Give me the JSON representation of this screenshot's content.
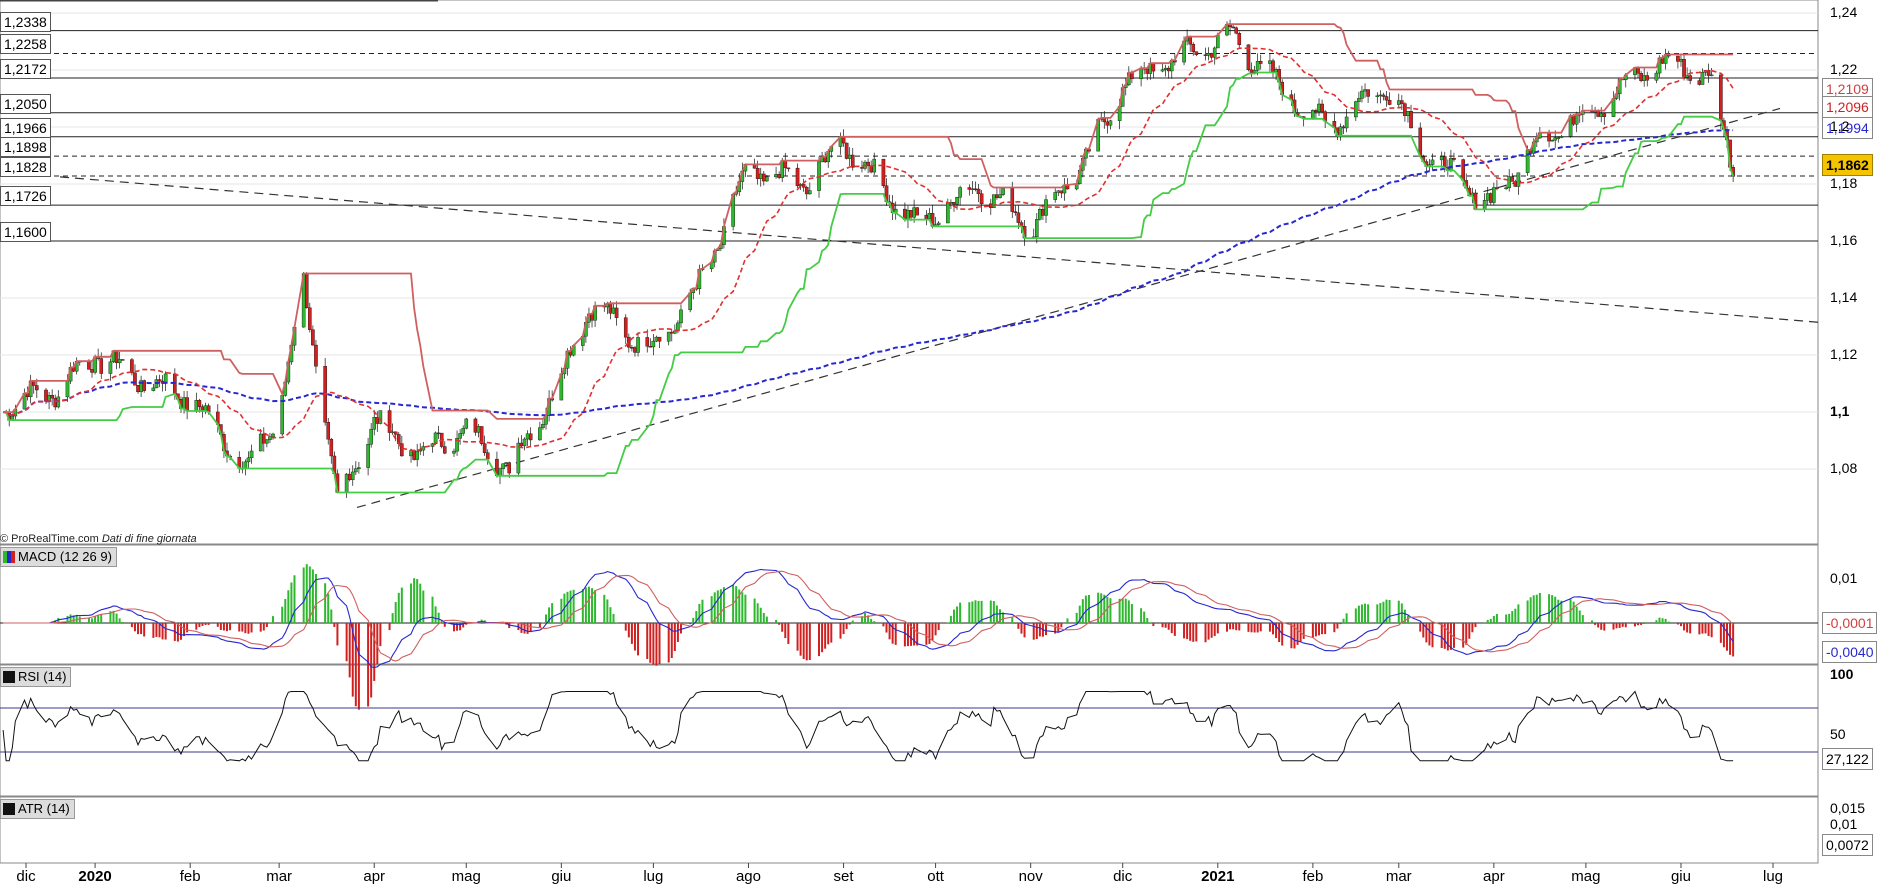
{
  "credit": {
    "site": "© ProRealTime.com",
    "note": "Dati di fine giornata"
  },
  "levels_left": [
    "1,2338",
    "1,2258",
    "1,2172",
    "1,2050",
    "1,1966",
    "1,1898",
    "1,1828",
    "1,1726",
    "1,1600"
  ],
  "right_tags": {
    "price": "1,1862",
    "ma_red": "1,2109",
    "ma_red2": "1,2096",
    "ma_blue": "1,1994",
    "macd_signal": "-0,0001",
    "macd_line": "-0,0040",
    "rsi": "27,122",
    "atr": "0,0072"
  },
  "panels": {
    "macd": "MACD (12 26 9)",
    "rsi": "RSI (14)",
    "atr": "ATR (14)"
  },
  "colors": {
    "up": "#2eb82e",
    "down": "#d02020",
    "ma_blue": "#2828d0",
    "ma_red": "#e03030",
    "kijun_green": "#44cc44",
    "kijun_red": "#d06060",
    "price_tag": "#f5c400",
    "atr_fill": "#9999cc"
  },
  "chart_data": [
    {
      "type": "candlestick",
      "title": "",
      "x": [
        "dic",
        "2020",
        "feb",
        "mar",
        "apr",
        "mag",
        "giu",
        "lug",
        "ago",
        "set",
        "ott",
        "nov",
        "dic",
        "2021",
        "feb",
        "mar",
        "apr",
        "mag",
        "giu",
        "lug"
      ],
      "y_ticks": [
        "1,24",
        "1,22",
        "1,2",
        "1,18",
        "1,16",
        "1,14",
        "1,12",
        "1,1",
        "1,08"
      ],
      "ylim": [
        1.06,
        1.245
      ],
      "close_path": [
        [
          "2019-12-01",
          1.102
        ],
        [
          "2019-12-20",
          1.108
        ],
        [
          "2020-01-01",
          1.12
        ],
        [
          "2020-01-15",
          1.112
        ],
        [
          "2020-02-01",
          1.105
        ],
        [
          "2020-02-20",
          1.08
        ],
        [
          "2020-03-01",
          1.1
        ],
        [
          "2020-03-09",
          1.145
        ],
        [
          "2020-03-20",
          1.068
        ],
        [
          "2020-04-01",
          1.097
        ],
        [
          "2020-04-15",
          1.085
        ],
        [
          "2020-05-01",
          1.094
        ],
        [
          "2020-05-15",
          1.08
        ],
        [
          "2020-06-01",
          1.112
        ],
        [
          "2020-06-10",
          1.138
        ],
        [
          "2020-06-30",
          1.122
        ],
        [
          "2020-07-15",
          1.142
        ],
        [
          "2020-08-01",
          1.185
        ],
        [
          "2020-08-20",
          1.18
        ],
        [
          "2020-09-01",
          1.195
        ],
        [
          "2020-09-25",
          1.165
        ],
        [
          "2020-10-15",
          1.18
        ],
        [
          "2020-11-01",
          1.165
        ],
        [
          "2020-11-20",
          1.19
        ],
        [
          "2020-12-01",
          1.215
        ],
        [
          "2020-12-20",
          1.225
        ],
        [
          "2021-01-06",
          1.232
        ],
        [
          "2021-01-20",
          1.215
        ],
        [
          "2021-02-05",
          1.2
        ],
        [
          "2021-02-25",
          1.215
        ],
        [
          "2021-03-10",
          1.19
        ],
        [
          "2021-03-31",
          1.173
        ],
        [
          "2021-04-15",
          1.195
        ],
        [
          "2021-05-01",
          1.205
        ],
        [
          "2021-05-25",
          1.223
        ],
        [
          "2021-06-10",
          1.218
        ],
        [
          "2021-06-18",
          1.186
        ]
      ],
      "series": [
        {
          "name": "",
          "color": "blue",
          "kind": "moving-average"
        },
        {
          "name": "",
          "color": "red",
          "kind": "moving-average"
        }
      ]
    },
    {
      "type": "line",
      "title": "MACD (12 26 9)",
      "y_ticks": [
        "0,01"
      ],
      "zero_line": 0
    },
    {
      "type": "line",
      "title": "RSI (14)",
      "y_ticks": [
        "100",
        "50"
      ],
      "levels": [
        70,
        30
      ]
    },
    {
      "type": "area",
      "title": "ATR (14)",
      "y_ticks": [
        "0,015",
        "0,01"
      ]
    }
  ]
}
